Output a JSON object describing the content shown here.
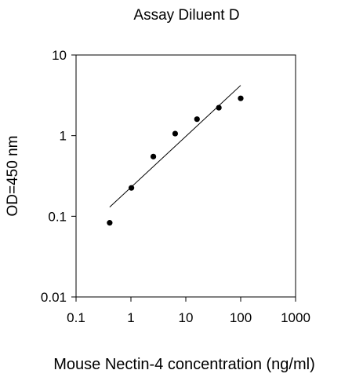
{
  "chart_data": {
    "type": "scatter",
    "title": "Assay Diluent D",
    "xlabel": "Mouse Nectin-4 concentration (ng/ml)",
    "ylabel": "OD=450 nm",
    "x_scale": "log",
    "y_scale": "log",
    "xlim": [
      0.1,
      1000
    ],
    "ylim": [
      0.01,
      10
    ],
    "x_ticks": [
      0.1,
      1,
      10,
      100,
      1000
    ],
    "x_tick_labels": [
      "0.1",
      "1",
      "10",
      "100",
      "1000"
    ],
    "y_ticks": [
      0.01,
      0.1,
      1,
      10
    ],
    "y_tick_labels": [
      "0.01",
      "0.1",
      "1",
      "10"
    ],
    "grid": false,
    "legend": "none",
    "points": {
      "x": [
        0.41,
        1.02,
        2.56,
        6.4,
        16,
        40,
        100
      ],
      "y": [
        0.083,
        0.225,
        0.55,
        1.06,
        1.6,
        2.22,
        2.9
      ]
    },
    "fit_line": {
      "x": [
        0.41,
        100
      ],
      "y": [
        0.13,
        4.2
      ]
    },
    "colors": {
      "points": "#000000",
      "fit_line": "#000000",
      "axes": "#000000"
    }
  }
}
